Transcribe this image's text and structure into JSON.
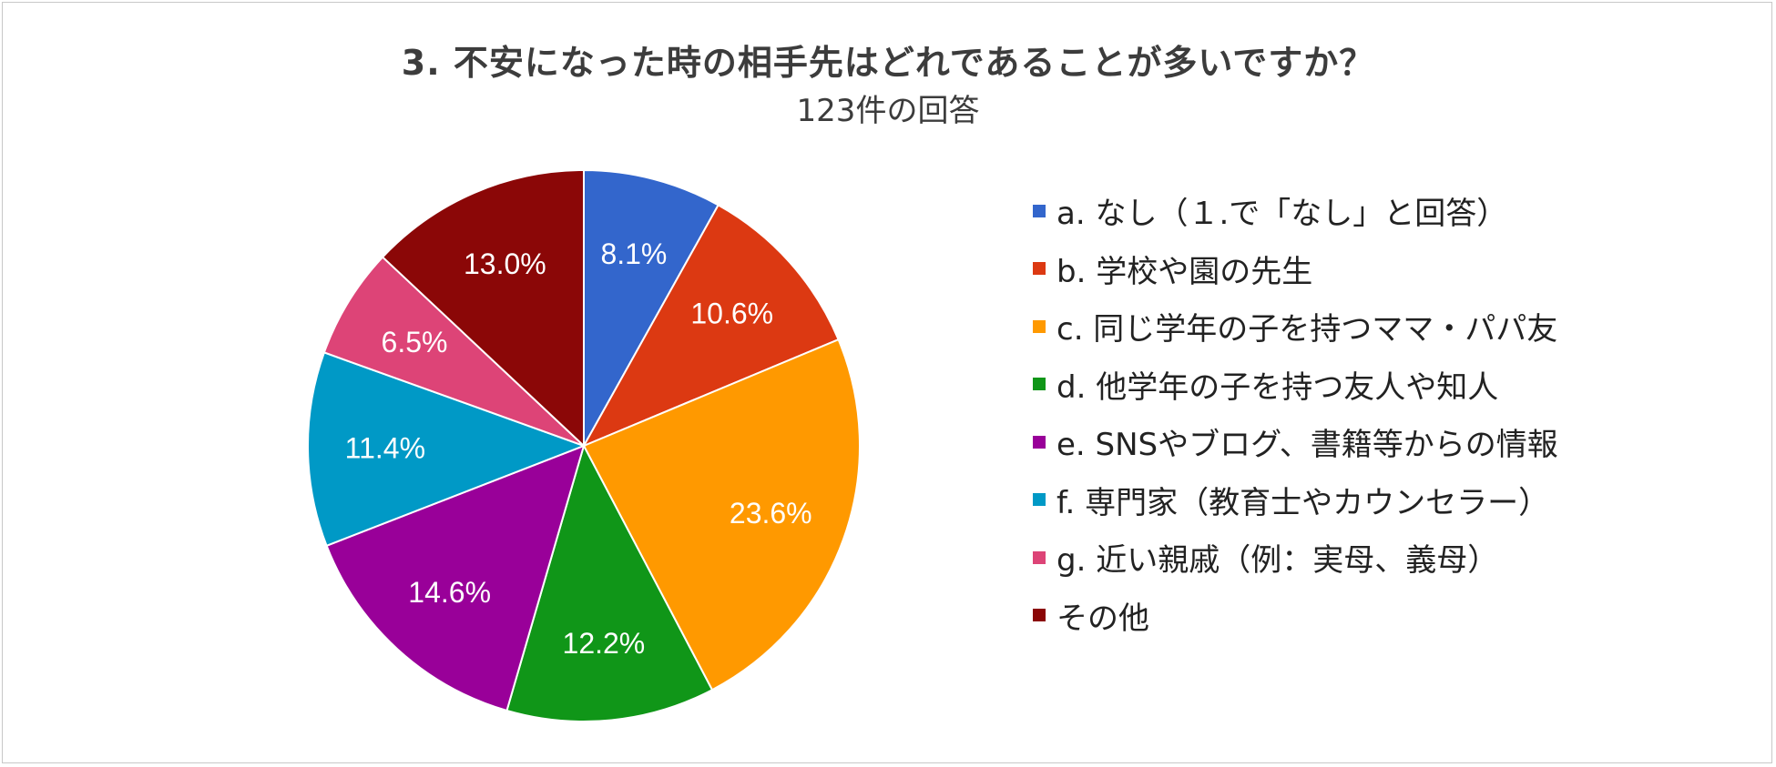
{
  "chart_data": {
    "type": "pie",
    "title": "3. 不安になった時の相手先はどれであることが多いですか？",
    "subtitle": "123件の回答",
    "legend_position": "right",
    "slices": [
      {
        "label": "a. なし（１.で「なし」と回答）",
        "value": 8.1,
        "display": "8.1%",
        "color": "#3366cc"
      },
      {
        "label": "b. 学校や園の先生",
        "value": 10.6,
        "display": "10.6%",
        "color": "#dc3912"
      },
      {
        "label": "c. 同じ学年の子を持つママ・パパ友",
        "value": 23.6,
        "display": "23.6%",
        "color": "#ff9900"
      },
      {
        "label": "d. 他学年の子を持つ友人や知人",
        "value": 12.2,
        "display": "12.2%",
        "color": "#109618"
      },
      {
        "label": "e. SNSやブログ、書籍等からの情報",
        "value": 14.6,
        "display": "14.6%",
        "color": "#990099"
      },
      {
        "label": "f. 専門家（教育士やカウンセラー）",
        "value": 11.4,
        "display": "11.4%",
        "color": "#0099c6"
      },
      {
        "label": "g. 近い親戚（例：実母、義母）",
        "value": 6.5,
        "display": "6.5%",
        "color": "#dd4477"
      },
      {
        "label": "その他",
        "value": 13.0,
        "display": "13.0%",
        "color": "#8b0707"
      }
    ]
  }
}
